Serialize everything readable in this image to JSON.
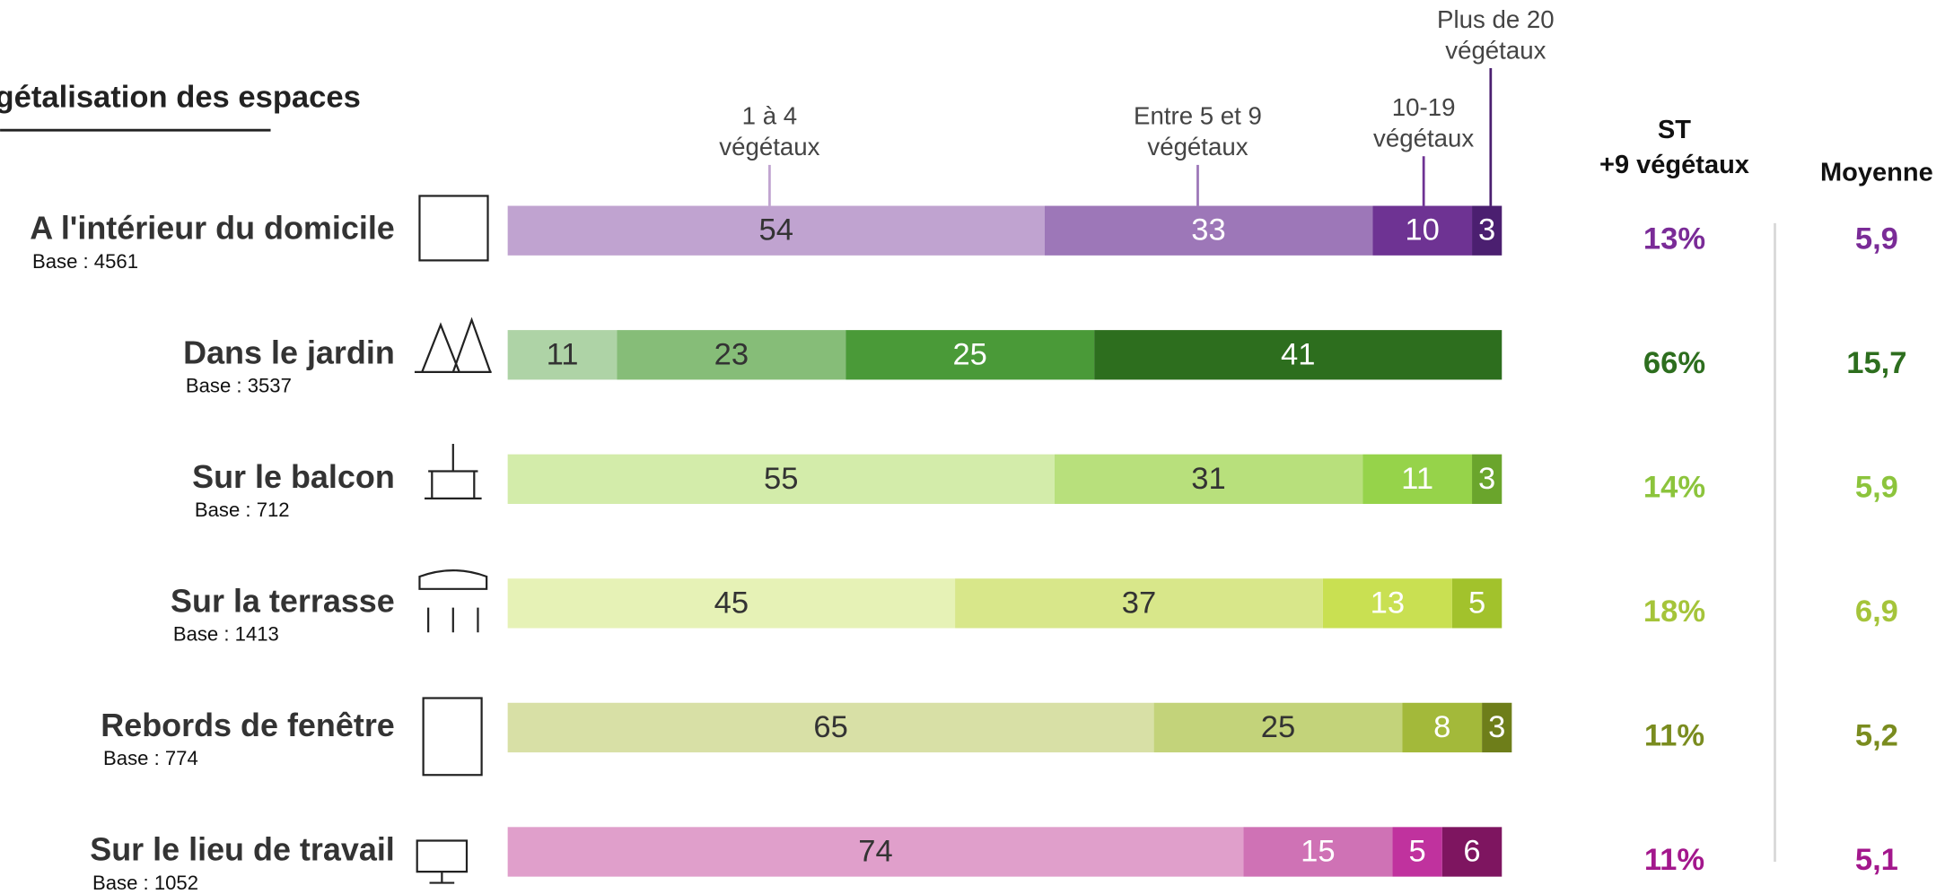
{
  "chart_data": {
    "type": "stacked-bar",
    "title": "gétalisation des espaces",
    "series_names": [
      [
        "1 à 4",
        "végétaux"
      ],
      [
        "Entre 5 et 9",
        "végétaux"
      ],
      [
        "10-19",
        "végétaux"
      ],
      [
        "Plus de 20",
        "végétaux"
      ]
    ],
    "st_header": [
      "ST",
      "+9 végétaux"
    ],
    "mean_header": "Moyenne",
    "xlim": [
      0,
      100
    ],
    "rows": [
      {
        "label": "A l'intérieur du domicile",
        "base": "Base : 4561",
        "values": [
          54,
          33,
          10,
          3
        ],
        "colors": [
          "#c0a3d0",
          "#9d77b8",
          "#6e3393",
          "#4b1f70"
        ],
        "st": "13%",
        "mean": "5,9",
        "accent": "#7a2b97"
      },
      {
        "label": "Dans le jardin",
        "base": "Base : 3537",
        "values": [
          11,
          23,
          25,
          41
        ],
        "colors": [
          "#aed3a6",
          "#86bd78",
          "#4a9a38",
          "#2d6e1e"
        ],
        "st": "66%",
        "mean": "15,7",
        "accent": "#2d6e1e"
      },
      {
        "label": "Sur le balcon",
        "base": "Base : 712",
        "values": [
          55,
          31,
          11,
          3
        ],
        "colors": [
          "#d3ecaa",
          "#b8e07c",
          "#96d34a",
          "#6aa52c"
        ],
        "st": "14%",
        "mean": "5,9",
        "accent": "#8cc43c"
      },
      {
        "label": "Sur la terrasse",
        "base": "Base : 1413",
        "values": [
          45,
          37,
          13,
          5
        ],
        "colors": [
          "#e6f2b6",
          "#d8e78a",
          "#c9e052",
          "#a2c22c"
        ],
        "st": "18%",
        "mean": "6,9",
        "accent": "#a5c43a"
      },
      {
        "label": "Rebords de fenêtre",
        "base": "Base : 774",
        "values": [
          65,
          25,
          8,
          3
        ],
        "colors": [
          "#d8e0a6",
          "#c3d37a",
          "#a3b93a",
          "#6e7e1a"
        ],
        "st": "11%",
        "mean": "5,2",
        "accent": "#7a8c1f"
      },
      {
        "label": "Sur le lieu de travail",
        "base": "Base : 1052",
        "values": [
          74,
          15,
          5,
          6
        ],
        "colors": [
          "#e09fcb",
          "#cf72b5",
          "#c0329e",
          "#7e1560"
        ],
        "st": "11%",
        "mean": "5,1",
        "accent": "#a3178c"
      }
    ]
  }
}
